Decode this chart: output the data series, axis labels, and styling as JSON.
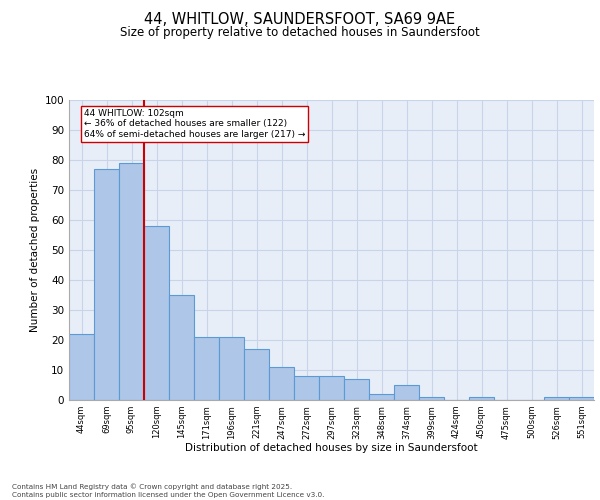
{
  "title1": "44, WHITLOW, SAUNDERSFOOT, SA69 9AE",
  "title2": "Size of property relative to detached houses in Saundersfoot",
  "xlabel": "Distribution of detached houses by size in Saundersfoot",
  "ylabel": "Number of detached properties",
  "categories": [
    "44sqm",
    "69sqm",
    "95sqm",
    "120sqm",
    "145sqm",
    "171sqm",
    "196sqm",
    "221sqm",
    "247sqm",
    "272sqm",
    "297sqm",
    "323sqm",
    "348sqm",
    "374sqm",
    "399sqm",
    "424sqm",
    "450sqm",
    "475sqm",
    "500sqm",
    "526sqm",
    "551sqm"
  ],
  "values": [
    22,
    77,
    79,
    58,
    35,
    21,
    21,
    17,
    11,
    8,
    8,
    7,
    2,
    5,
    1,
    0,
    1,
    0,
    0,
    1,
    1
  ],
  "bar_color": "#aec6e8",
  "bar_edge_color": "#5b9bd5",
  "vline_x": 2.5,
  "vline_color": "#cc0000",
  "annotation_text": "44 WHITLOW: 102sqm\n← 36% of detached houses are smaller (122)\n64% of semi-detached houses are larger (217) →",
  "annotation_box_color": "#ffffff",
  "annotation_box_edge": "#cc0000",
  "ylim": [
    0,
    100
  ],
  "yticks": [
    0,
    10,
    20,
    30,
    40,
    50,
    60,
    70,
    80,
    90,
    100
  ],
  "grid_color": "#c8d4e8",
  "bg_color": "#e8eef8",
  "footer": "Contains HM Land Registry data © Crown copyright and database right 2025.\nContains public sector information licensed under the Open Government Licence v3.0."
}
